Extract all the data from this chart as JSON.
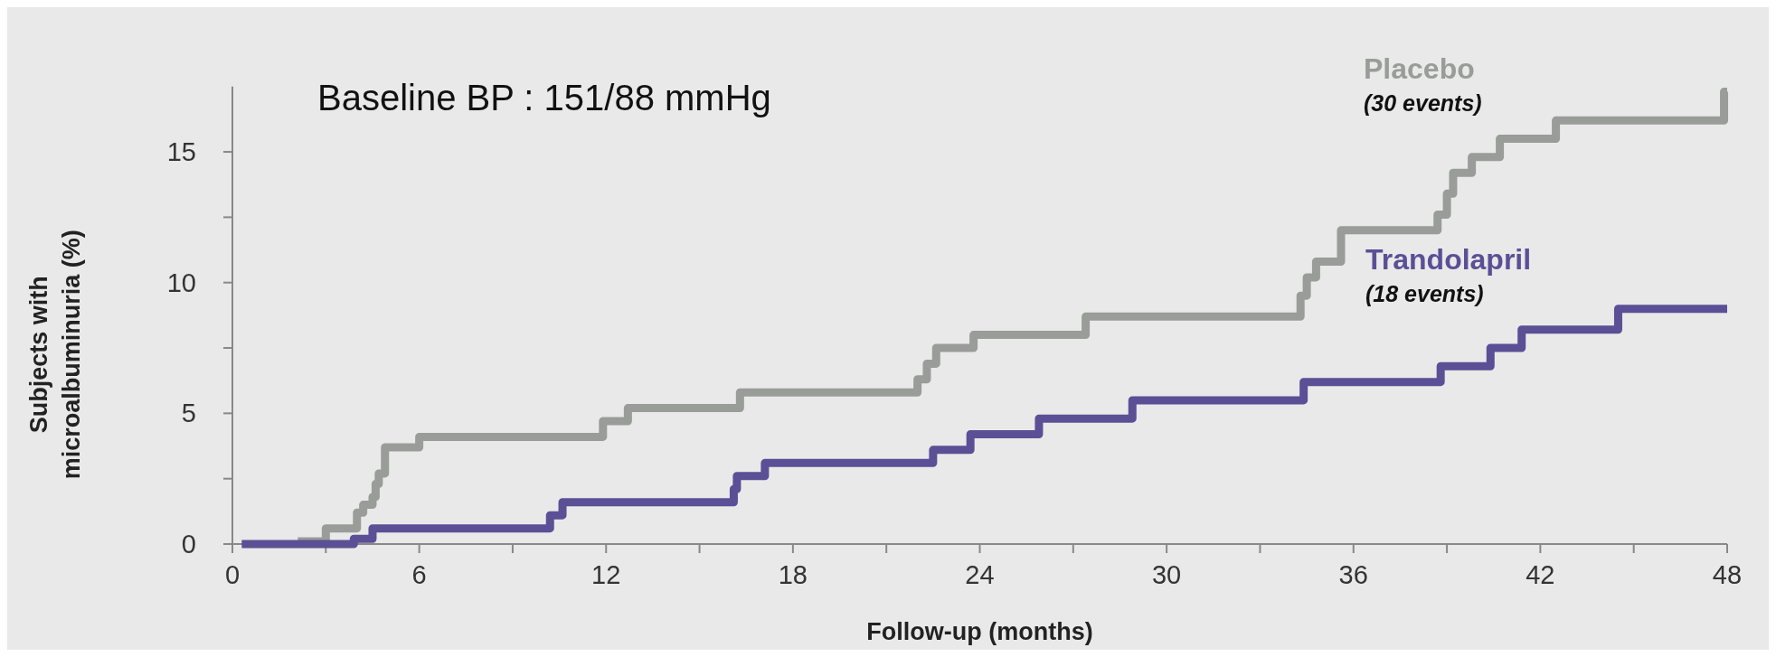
{
  "chart_data": {
    "type": "step",
    "xlabel": "Follow-up (months)",
    "ylabel": "Subjects with microalbuminuria (%)",
    "xlim": [
      0,
      48
    ],
    "ylim": [
      0,
      17.5
    ],
    "xticks": [
      0,
      {
        "value": 3,
        "label": null
      },
      6,
      {
        "value": 9,
        "label": null
      },
      12,
      {
        "value": 15,
        "label": null
      },
      18,
      {
        "value": 21,
        "label": null
      },
      24,
      {
        "value": 27,
        "label": null
      },
      30,
      {
        "value": 33,
        "label": null
      },
      36,
      {
        "value": 39,
        "label": null
      },
      42,
      {
        "value": 45,
        "label": null
      },
      48
    ],
    "yticks": [
      0,
      {
        "value": 2.5,
        "label": null
      },
      5,
      {
        "value": 7.5,
        "label": null
      },
      10,
      {
        "value": 12.5,
        "label": null
      },
      15
    ],
    "annotations": [
      "Baseline BP : 151/88 mmHg",
      "(30 events)",
      "(18 events)"
    ],
    "series": [
      {
        "name": "Placebo",
        "color": "#999c99",
        "x": [
          2.1,
          3.0,
          4.0,
          4.2,
          4.5,
          4.6,
          4.7,
          4.9,
          6.0,
          11.9,
          12.7,
          16.3,
          22.0,
          22.3,
          22.6,
          23.8,
          27.4,
          34.3,
          34.5,
          34.8,
          35.6,
          38.7,
          39.0,
          39.2,
          39.8,
          40.7,
          42.5,
          47.9,
          48
        ],
        "values": [
          0.1,
          0.6,
          1.2,
          1.5,
          1.8,
          2.3,
          2.7,
          3.7,
          4.1,
          4.7,
          5.2,
          5.8,
          6.3,
          6.9,
          7.5,
          8.0,
          8.7,
          9.5,
          10.2,
          10.8,
          12.0,
          12.6,
          13.4,
          14.2,
          14.8,
          15.5,
          16.2,
          17.3,
          17.3
        ]
      },
      {
        "name": "Trandolapril",
        "color": "#5b4f96",
        "x": [
          0.3,
          3.9,
          4.5,
          10.2,
          10.6,
          16.1,
          16.2,
          17.1,
          22.5,
          23.7,
          25.9,
          28.9,
          34.4,
          38.8,
          40.4,
          41.4,
          44.5,
          48
        ],
        "values": [
          0,
          0.2,
          0.6,
          1.1,
          1.6,
          2.1,
          2.6,
          3.1,
          3.6,
          4.2,
          4.8,
          5.5,
          6.2,
          6.8,
          7.5,
          8.2,
          9.0,
          9.0
        ]
      }
    ]
  }
}
